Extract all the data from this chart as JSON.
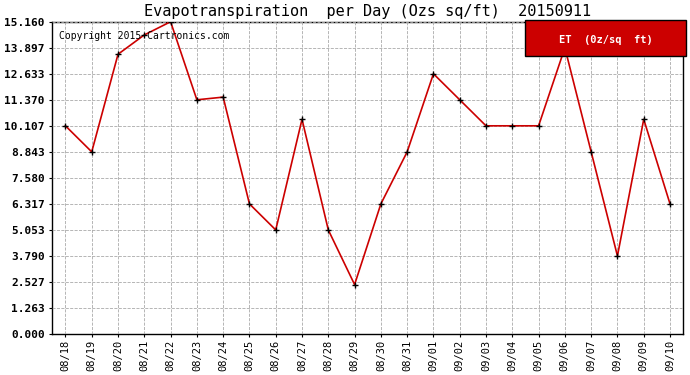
{
  "title": "Evapotranspiration  per Day (Ozs sq/ft)  20150911",
  "copyright": "Copyright 2015 Cartronics.com",
  "legend_label": "ET  (0z/sq  ft)",
  "x_labels": [
    "08/18",
    "08/19",
    "08/20",
    "08/21",
    "08/22",
    "08/23",
    "08/24",
    "08/25",
    "08/26",
    "08/27",
    "08/28",
    "08/29",
    "08/30",
    "08/31",
    "09/01",
    "09/02",
    "09/03",
    "09/04",
    "09/05",
    "09/06",
    "09/07",
    "09/08",
    "09/09",
    "09/10"
  ],
  "y_values": [
    10.107,
    8.843,
    13.581,
    14.519,
    15.16,
    11.37,
    11.5,
    6.317,
    5.053,
    10.422,
    5.053,
    2.4,
    6.317,
    8.843,
    12.633,
    11.37,
    10.107,
    10.107,
    10.107,
    13.897,
    8.843,
    3.79,
    10.422,
    6.317
  ],
  "y_ticks": [
    0.0,
    1.263,
    2.527,
    3.79,
    5.053,
    6.317,
    7.58,
    8.843,
    10.107,
    11.37,
    12.633,
    13.897,
    15.16
  ],
  "line_color": "#cc0000",
  "marker_color": "#000000",
  "bg_color": "#ffffff",
  "plot_bg_color": "#ffffff",
  "grid_color": "#aaaaaa",
  "legend_bg": "#cc0000",
  "legend_text_color": "#ffffff",
  "title_fontsize": 11,
  "tick_fontsize": 7.5,
  "ytick_fontsize": 8,
  "copyright_fontsize": 7
}
